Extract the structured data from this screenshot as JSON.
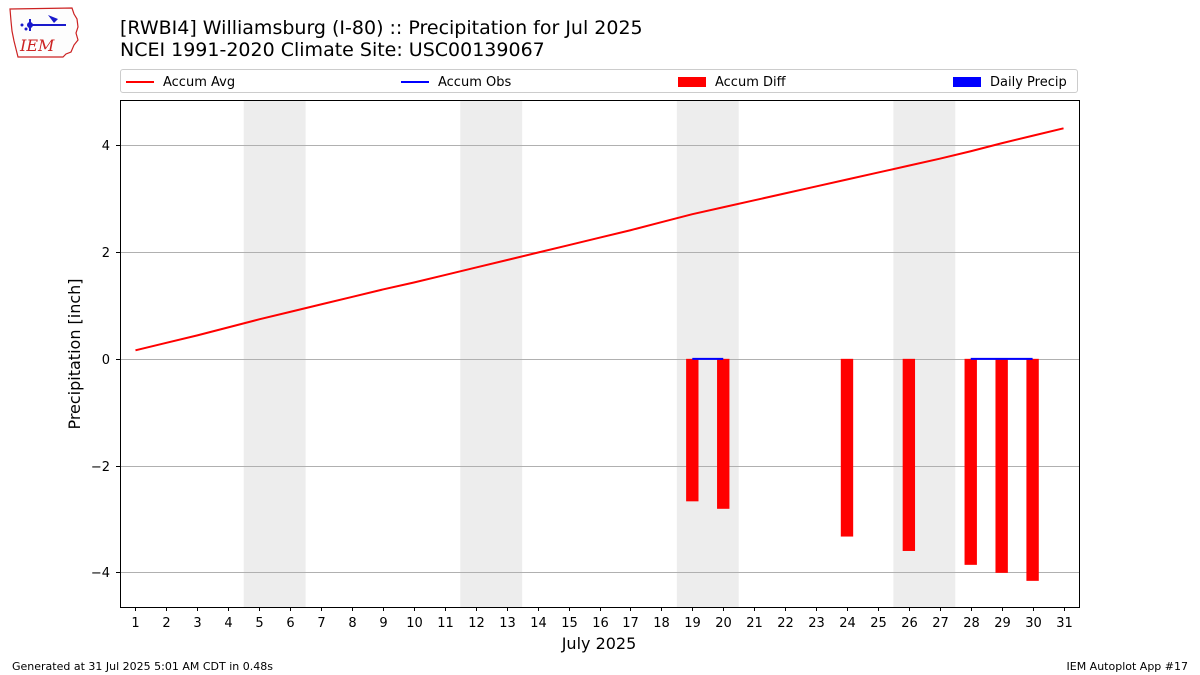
{
  "header": {
    "title_line1": "[RWBI4] Williamsburg (I-80) :: Precipitation for Jul 2025",
    "title_line2": "NCEI 1991-2020 Climate Site: USC00139067"
  },
  "logo": {
    "text": "IEM",
    "icon": "iem-logo-icon"
  },
  "footer": {
    "left": "Generated at 31 Jul 2025 5:01 AM CDT in 0.48s",
    "right": "IEM Autoplot App #17"
  },
  "colors": {
    "accum_avg": "#ff0000",
    "accum_obs": "#0000ff",
    "accum_diff": "#ff0000",
    "daily_precip": "#0000ff",
    "weekend_shade": "#ededed",
    "grid": "#b0b0b0",
    "logo": "#cc2222"
  },
  "chart_data": {
    "type": "bar",
    "title": "[RWBI4] Williamsburg (I-80) :: Precipitation for Jul 2025",
    "subtitle": "NCEI 1991-2020 Climate Site: USC00139067",
    "xlabel": "July 2025",
    "ylabel": "Precipitation [inch]",
    "x": [
      1,
      2,
      3,
      4,
      5,
      6,
      7,
      8,
      9,
      10,
      11,
      12,
      13,
      14,
      15,
      16,
      17,
      18,
      19,
      20,
      21,
      22,
      23,
      24,
      25,
      26,
      27,
      28,
      29,
      30,
      31
    ],
    "x_ticks": [
      "1",
      "2",
      "3",
      "4",
      "5",
      "6",
      "7",
      "8",
      "9",
      "10",
      "11",
      "12",
      "13",
      "14",
      "15",
      "16",
      "17",
      "18",
      "19",
      "20",
      "21",
      "22",
      "23",
      "24",
      "25",
      "26",
      "27",
      "28",
      "29",
      "30",
      "31"
    ],
    "xlim": [
      0.5,
      31.5
    ],
    "ylim": [
      -4.65,
      4.85
    ],
    "y_ticks": [
      4,
      2,
      0,
      -2,
      -4
    ],
    "y_tick_labels": [
      "4",
      "2",
      "0",
      "−2",
      "−4"
    ],
    "grid": "horizontal",
    "legend_position": "top, above plot",
    "weekend_shading": [
      [
        4.5,
        6.5
      ],
      [
        11.5,
        13.5
      ],
      [
        18.5,
        20.5
      ],
      [
        25.5,
        27.5
      ]
    ],
    "legend": [
      "Accum Avg",
      "Accum Obs",
      "Accum Diff",
      "Daily Precip"
    ],
    "series": [
      {
        "name": "Accum Avg",
        "kind": "line",
        "values": [
          0.16,
          0.3,
          0.44,
          0.59,
          0.74,
          0.88,
          1.02,
          1.16,
          1.3,
          1.43,
          1.57,
          1.71,
          1.85,
          1.99,
          2.13,
          2.27,
          2.41,
          2.56,
          2.71,
          2.84,
          2.97,
          3.1,
          3.23,
          3.36,
          3.49,
          3.62,
          3.75,
          3.89,
          4.04,
          4.18,
          4.32
        ]
      },
      {
        "name": "Accum Obs",
        "kind": "line",
        "segments": [
          {
            "x": [
              19,
              20
            ],
            "values": [
              0.0,
              0.0
            ]
          },
          {
            "x": [
              28,
              29,
              30
            ],
            "values": [
              0.0,
              0.0,
              0.0
            ]
          }
        ]
      },
      {
        "name": "Accum Diff",
        "kind": "bar",
        "x": [
          19,
          20,
          24,
          26,
          28,
          29,
          30
        ],
        "values": [
          -2.67,
          -2.81,
          -3.33,
          -3.6,
          -3.86,
          -4.01,
          -4.16
        ]
      },
      {
        "name": "Daily Precip",
        "kind": "bar",
        "x": [
          19,
          20,
          28,
          29,
          30
        ],
        "values": [
          0.0,
          0.0,
          0.0,
          0.0,
          0.0
        ]
      }
    ]
  }
}
